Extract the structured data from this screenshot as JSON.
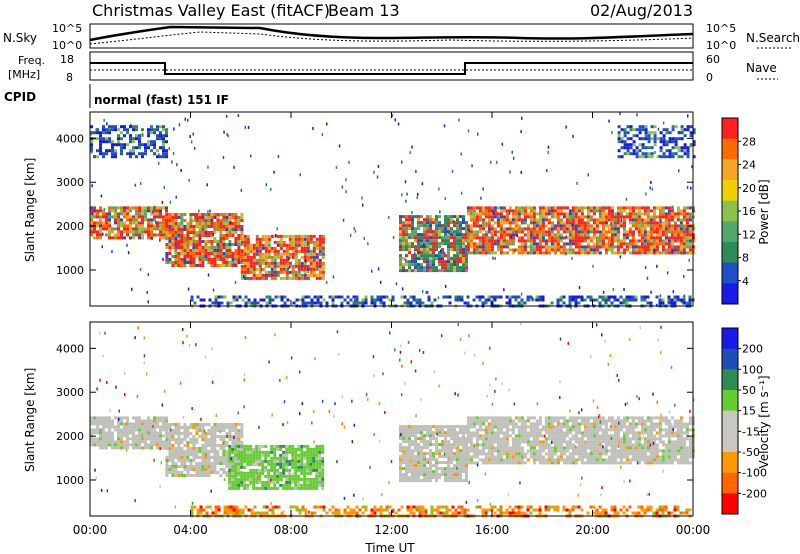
{
  "header": {
    "station": "Christmas Valley East (fitACF)",
    "beam": "Beam 13",
    "date": "02/Aug/2013"
  },
  "summary": {
    "nsky_label": "N.Sky",
    "nsky_ticks": [
      "10^5",
      "10^0"
    ],
    "nsearch_label": "N.Search",
    "nsearch_ticks": [
      "10^5",
      "10^0"
    ],
    "freq_label_1": "Freq.",
    "freq_label_2": "[MHz]",
    "freq_ticks": [
      "18",
      "8"
    ],
    "nave_label": "Nave",
    "nave_ticks": [
      "60",
      "0"
    ],
    "cpid_label": "CPID",
    "cpid_text": "normal (fast) 151 IF"
  },
  "time_axis": {
    "label": "Time UT",
    "ticks": [
      "00:00",
      "04:00",
      "08:00",
      "12:00",
      "16:00",
      "20:00",
      "00:00"
    ]
  },
  "colors": {
    "power": [
      "#1a1ae8",
      "#1f4fc6",
      "#2e8b57",
      "#52a86a",
      "#8bc34a",
      "#f0d000",
      "#f5a623",
      "#ff6a00",
      "#ff2020"
    ],
    "velocity": [
      "#ff0000",
      "#ff6600",
      "#ff9900",
      "#c8c8c0",
      "#c8c8c0",
      "#66cc33",
      "#2e8b57",
      "#1e4db7",
      "#1a1ae8"
    ],
    "gray": "#c0c0ba"
  },
  "chart_data": [
    {
      "type": "heatmap",
      "name": "power",
      "xlabel": "Time UT",
      "ylabel": "Slant Range [km]",
      "xlim": [
        0,
        24
      ],
      "ylim": [
        180,
        4600
      ],
      "yticks": [
        1000,
        2000,
        3000,
        4000
      ],
      "colorbar": {
        "label": "Power [dB]",
        "ticks": [
          "28",
          "24",
          "20",
          "16",
          "12",
          "8",
          "4"
        ]
      },
      "bands": [
        {
          "t0": 0.0,
          "t1": 3.0,
          "r0": 1750,
          "r1": 2450,
          "level": "high"
        },
        {
          "t0": 3.0,
          "t1": 6.0,
          "r0": 1100,
          "r1": 2300,
          "level": "high"
        },
        {
          "t0": 6.0,
          "t1": 9.3,
          "r0": 800,
          "r1": 1800,
          "level": "high"
        },
        {
          "t0": 12.3,
          "t1": 15.0,
          "r0": 1000,
          "r1": 2250,
          "level": "medium"
        },
        {
          "t0": 15.0,
          "t1": 24.0,
          "r0": 1400,
          "r1": 2450,
          "level": "high"
        },
        {
          "t0": 4.0,
          "t1": 24.0,
          "r0": 180,
          "r1": 420,
          "level": "low"
        },
        {
          "t0": 0.0,
          "t1": 3.0,
          "r0": 3600,
          "r1": 4300,
          "level": "low"
        },
        {
          "t0": 21.0,
          "t1": 24.0,
          "r0": 3600,
          "r1": 4300,
          "level": "low"
        }
      ]
    },
    {
      "type": "heatmap",
      "name": "velocity",
      "xlabel": "Time UT",
      "ylabel": "Slant Range [km]",
      "xlim": [
        0,
        24
      ],
      "ylim": [
        180,
        4600
      ],
      "yticks": [
        1000,
        2000,
        3000,
        4000
      ],
      "colorbar": {
        "label": "Velocity [m s⁻¹]",
        "ticks": [
          "200",
          "100",
          "50",
          "15",
          "-15",
          "-50",
          "-100",
          "-200"
        ]
      },
      "bands": [
        {
          "t0": 0.0,
          "t1": 3.0,
          "r0": 1750,
          "r1": 2450,
          "level": "ground"
        },
        {
          "t0": 3.0,
          "t1": 6.0,
          "r0": 1100,
          "r1": 2300,
          "level": "ground"
        },
        {
          "t0": 5.5,
          "t1": 9.3,
          "r0": 800,
          "r1": 1800,
          "level": "positive"
        },
        {
          "t0": 12.3,
          "t1": 15.0,
          "r0": 1000,
          "r1": 2250,
          "level": "ground"
        },
        {
          "t0": 15.0,
          "t1": 24.0,
          "r0": 1400,
          "r1": 2450,
          "level": "ground"
        },
        {
          "t0": 4.0,
          "t1": 24.0,
          "r0": 180,
          "r1": 420,
          "level": "negative"
        }
      ]
    }
  ]
}
